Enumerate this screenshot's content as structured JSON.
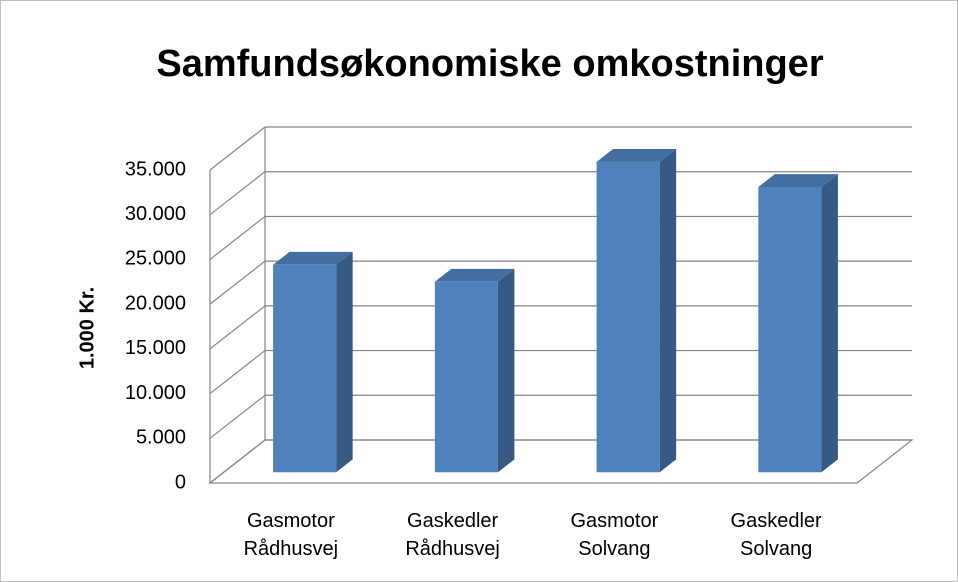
{
  "chart_data": {
    "type": "bar3d",
    "title": "Samfundsøkonomiske omkostninger",
    "y_label": "1.000 Kr.",
    "categories": [
      "Gasmotor Rådhusvej",
      "Gaskedler Rådhusvej",
      "Gasmotor Solvang",
      "Gaskedler Solvang"
    ],
    "values": [
      23200,
      21300,
      34700,
      31900
    ],
    "color": "#4f81bd",
    "ylim": [
      0,
      35000
    ],
    "yticks": [
      {
        "value": 0,
        "label": "0"
      },
      {
        "value": 5000,
        "label": "5.000"
      },
      {
        "value": 10000,
        "label": "10.000"
      },
      {
        "value": 15000,
        "label": "15.000"
      },
      {
        "value": 20000,
        "label": "20.000"
      },
      {
        "value": 25000,
        "label": "25.000"
      },
      {
        "value": 30000,
        "label": "30.000"
      },
      {
        "value": 35000,
        "label": "35.000"
      }
    ],
    "grid": true
  }
}
